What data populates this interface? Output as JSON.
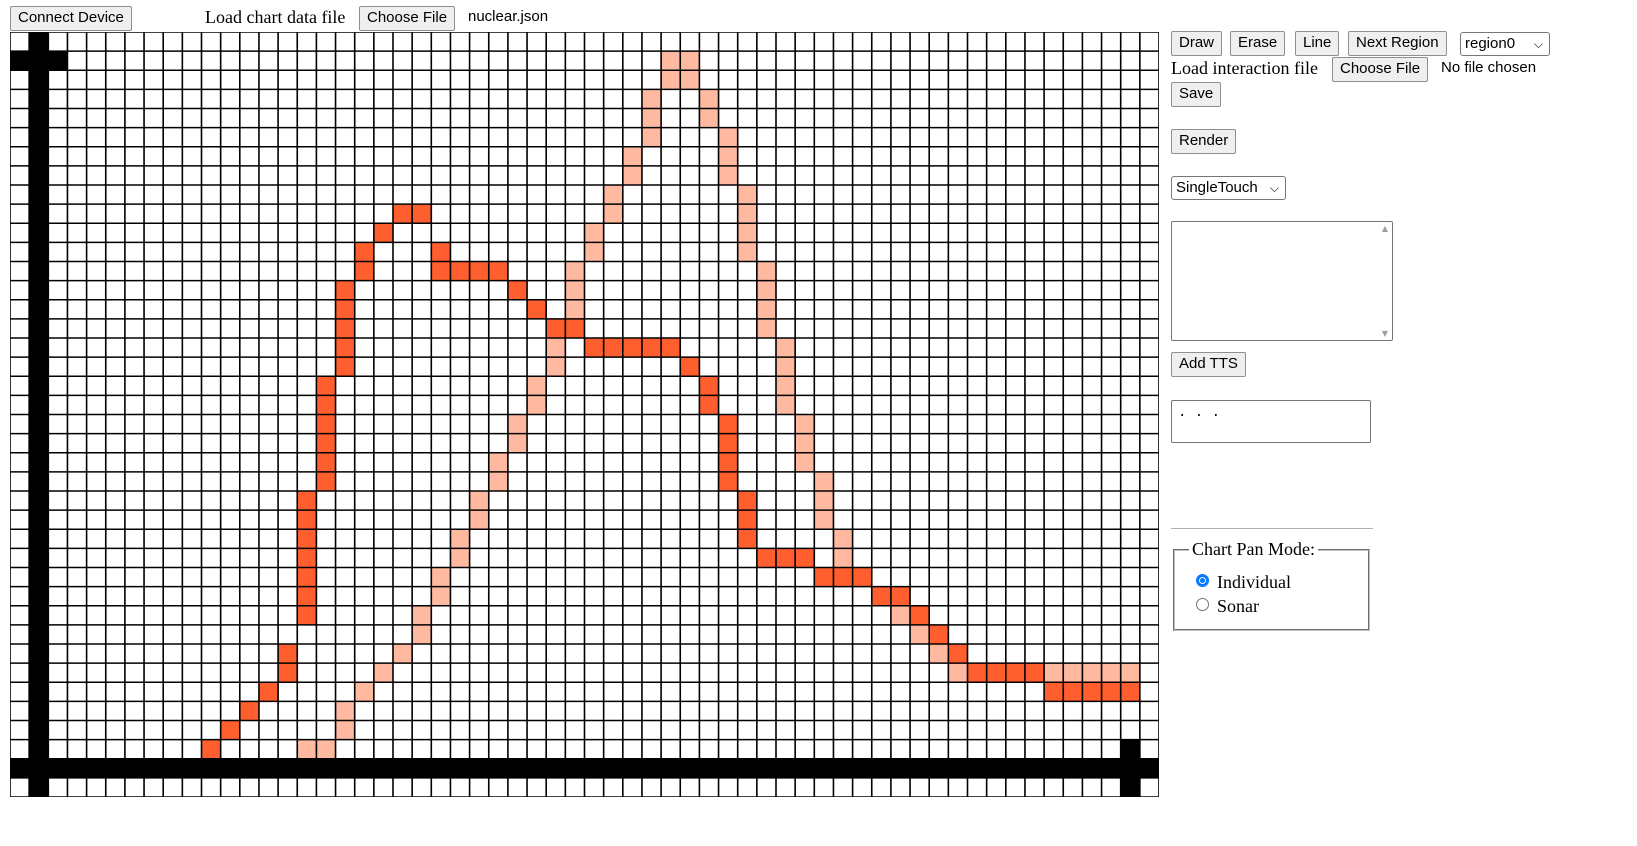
{
  "toolbar": {
    "connect_device": "Connect Device",
    "load_chart_label": "Load chart data file",
    "choose_file": "Choose File",
    "chart_file_name": "nuclear.json"
  },
  "side": {
    "draw": "Draw",
    "erase": "Erase",
    "line": "Line",
    "next_region": "Next Region",
    "region_select": "region0",
    "load_interaction_label": "Load interaction file",
    "choose_file": "Choose File",
    "interaction_file_status": "No file chosen",
    "save": "Save",
    "render": "Render",
    "touch_mode": "SingleTouch",
    "textarea_value": "",
    "add_tts": "Add TTS",
    "tts_value": ". . .",
    "pan_mode_legend": "Chart Pan Mode:",
    "pan_individual": "Individual",
    "pan_sonar": "Sonar"
  },
  "colors": {
    "series_dark": "#ff5f2f",
    "series_light": "#ffb9a1",
    "axis": "#000000",
    "grid_line": "#000000",
    "cell": "#ffffff"
  },
  "chart_data": {
    "type": "line",
    "grid": {
      "cols": 60,
      "rows": 40
    },
    "series": [
      {
        "color": "#ff5f2f",
        "points": [
          [
            4,
            38
          ],
          [
            5,
            38
          ],
          [
            6,
            38
          ],
          [
            7,
            38
          ],
          [
            8,
            38
          ],
          [
            9,
            38
          ],
          [
            10,
            37
          ],
          [
            11,
            36
          ],
          [
            12,
            35
          ],
          [
            13,
            34
          ],
          [
            14,
            33
          ],
          [
            14,
            32
          ],
          [
            15,
            30
          ],
          [
            15,
            29
          ],
          [
            15,
            28
          ],
          [
            15,
            27
          ],
          [
            15,
            26
          ],
          [
            15,
            25
          ],
          [
            15,
            24
          ],
          [
            16,
            23
          ],
          [
            16,
            22
          ],
          [
            16,
            21
          ],
          [
            16,
            20
          ],
          [
            16,
            19
          ],
          [
            16,
            18
          ],
          [
            17,
            17
          ],
          [
            17,
            16
          ],
          [
            17,
            15
          ],
          [
            17,
            14
          ],
          [
            17,
            13
          ],
          [
            18,
            12
          ],
          [
            18,
            11
          ],
          [
            19,
            10
          ],
          [
            20,
            9
          ],
          [
            21,
            9
          ],
          [
            22,
            11
          ],
          [
            22,
            12
          ],
          [
            23,
            12
          ],
          [
            24,
            12
          ],
          [
            25,
            12
          ],
          [
            26,
            13
          ],
          [
            27,
            14
          ],
          [
            28,
            15
          ],
          [
            29,
            15
          ],
          [
            30,
            16
          ],
          [
            31,
            16
          ],
          [
            32,
            16
          ],
          [
            33,
            16
          ],
          [
            34,
            16
          ],
          [
            35,
            17
          ],
          [
            36,
            18
          ],
          [
            36,
            19
          ],
          [
            37,
            20
          ],
          [
            37,
            21
          ],
          [
            37,
            22
          ],
          [
            37,
            23
          ],
          [
            38,
            24
          ],
          [
            38,
            25
          ],
          [
            38,
            26
          ],
          [
            39,
            27
          ],
          [
            40,
            27
          ],
          [
            41,
            27
          ],
          [
            42,
            28
          ],
          [
            43,
            28
          ],
          [
            44,
            28
          ],
          [
            45,
            29
          ],
          [
            46,
            29
          ],
          [
            47,
            30
          ],
          [
            48,
            31
          ],
          [
            49,
            32
          ],
          [
            50,
            33
          ],
          [
            51,
            33
          ],
          [
            52,
            33
          ],
          [
            53,
            33
          ],
          [
            54,
            34
          ],
          [
            55,
            34
          ],
          [
            56,
            34
          ],
          [
            57,
            34
          ],
          [
            58,
            34
          ]
        ]
      },
      {
        "color": "#ffb9a1",
        "points": [
          [
            4,
            38
          ],
          [
            5,
            38
          ],
          [
            6,
            38
          ],
          [
            7,
            38
          ],
          [
            8,
            38
          ],
          [
            9,
            38
          ],
          [
            10,
            38
          ],
          [
            11,
            38
          ],
          [
            12,
            38
          ],
          [
            13,
            38
          ],
          [
            14,
            38
          ],
          [
            15,
            37
          ],
          [
            16,
            37
          ],
          [
            17,
            36
          ],
          [
            17,
            35
          ],
          [
            18,
            34
          ],
          [
            19,
            33
          ],
          [
            20,
            32
          ],
          [
            21,
            31
          ],
          [
            21,
            30
          ],
          [
            22,
            29
          ],
          [
            22,
            28
          ],
          [
            23,
            27
          ],
          [
            23,
            26
          ],
          [
            24,
            25
          ],
          [
            24,
            24
          ],
          [
            25,
            23
          ],
          [
            25,
            22
          ],
          [
            26,
            21
          ],
          [
            26,
            20
          ],
          [
            27,
            19
          ],
          [
            27,
            18
          ],
          [
            28,
            17
          ],
          [
            28,
            16
          ],
          [
            28,
            15
          ],
          [
            29,
            14
          ],
          [
            29,
            13
          ],
          [
            29,
            12
          ],
          [
            30,
            11
          ],
          [
            30,
            10
          ],
          [
            31,
            9
          ],
          [
            31,
            8
          ],
          [
            32,
            7
          ],
          [
            32,
            6
          ],
          [
            33,
            5
          ],
          [
            33,
            4
          ],
          [
            33,
            3
          ],
          [
            34,
            2
          ],
          [
            34,
            1
          ],
          [
            35,
            1
          ],
          [
            35,
            2
          ],
          [
            36,
            3
          ],
          [
            36,
            4
          ],
          [
            37,
            5
          ],
          [
            37,
            6
          ],
          [
            37,
            7
          ],
          [
            38,
            8
          ],
          [
            38,
            9
          ],
          [
            38,
            10
          ],
          [
            38,
            11
          ],
          [
            39,
            12
          ],
          [
            39,
            13
          ],
          [
            39,
            14
          ],
          [
            39,
            15
          ],
          [
            40,
            16
          ],
          [
            40,
            17
          ],
          [
            40,
            18
          ],
          [
            40,
            19
          ],
          [
            41,
            20
          ],
          [
            41,
            21
          ],
          [
            41,
            22
          ],
          [
            42,
            23
          ],
          [
            42,
            24
          ],
          [
            42,
            25
          ],
          [
            43,
            26
          ],
          [
            43,
            27
          ],
          [
            44,
            28
          ],
          [
            45,
            29
          ],
          [
            46,
            30
          ],
          [
            47,
            31
          ],
          [
            48,
            32
          ],
          [
            49,
            33
          ],
          [
            50,
            33
          ],
          [
            51,
            33
          ],
          [
            52,
            33
          ],
          [
            53,
            33
          ],
          [
            54,
            33
          ],
          [
            55,
            33
          ],
          [
            56,
            33
          ],
          [
            57,
            33
          ],
          [
            58,
            33
          ],
          [
            58,
            34
          ]
        ]
      }
    ]
  }
}
